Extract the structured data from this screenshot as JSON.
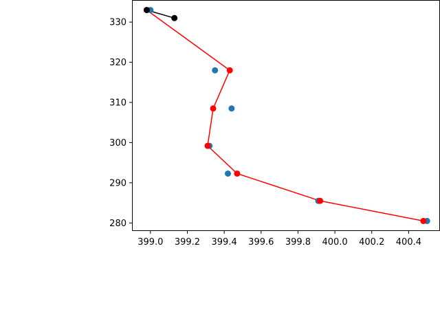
{
  "chart_data": {
    "type": "scatter",
    "xlim": [
      398.9,
      400.57
    ],
    "ylim": [
      278,
      335.5
    ],
    "xticks": [
      399.0,
      399.2,
      399.4,
      399.6,
      399.8,
      400.0,
      400.2,
      400.4
    ],
    "xtick_labels": [
      "399.0",
      "399.2",
      "399.4",
      "399.6",
      "399.8",
      "400.0",
      "400.2",
      "400.4"
    ],
    "yticks": [
      280,
      290,
      300,
      310,
      320,
      330
    ],
    "ytick_labels": [
      "280",
      "290",
      "300",
      "310",
      "320",
      "330"
    ],
    "grid": false,
    "series": [
      {
        "kind": "scatter",
        "color": "#1f77b4",
        "x": [
          399.0,
          399.35,
          399.44,
          399.32,
          399.42,
          399.91,
          400.5
        ],
        "y": [
          333.0,
          318.0,
          308.5,
          299.2,
          292.3,
          285.5,
          280.5
        ]
      },
      {
        "kind": "line-marker",
        "color": "#ff0000",
        "x": [
          398.98,
          399.43,
          399.34,
          399.31,
          399.47,
          399.92,
          400.48
        ],
        "y": [
          333.0,
          318.0,
          308.5,
          299.2,
          292.3,
          285.5,
          280.5
        ]
      },
      {
        "kind": "line-marker",
        "color": "#000000",
        "x": [
          398.98,
          399.13
        ],
        "y": [
          333.0,
          331.0
        ]
      }
    ]
  }
}
